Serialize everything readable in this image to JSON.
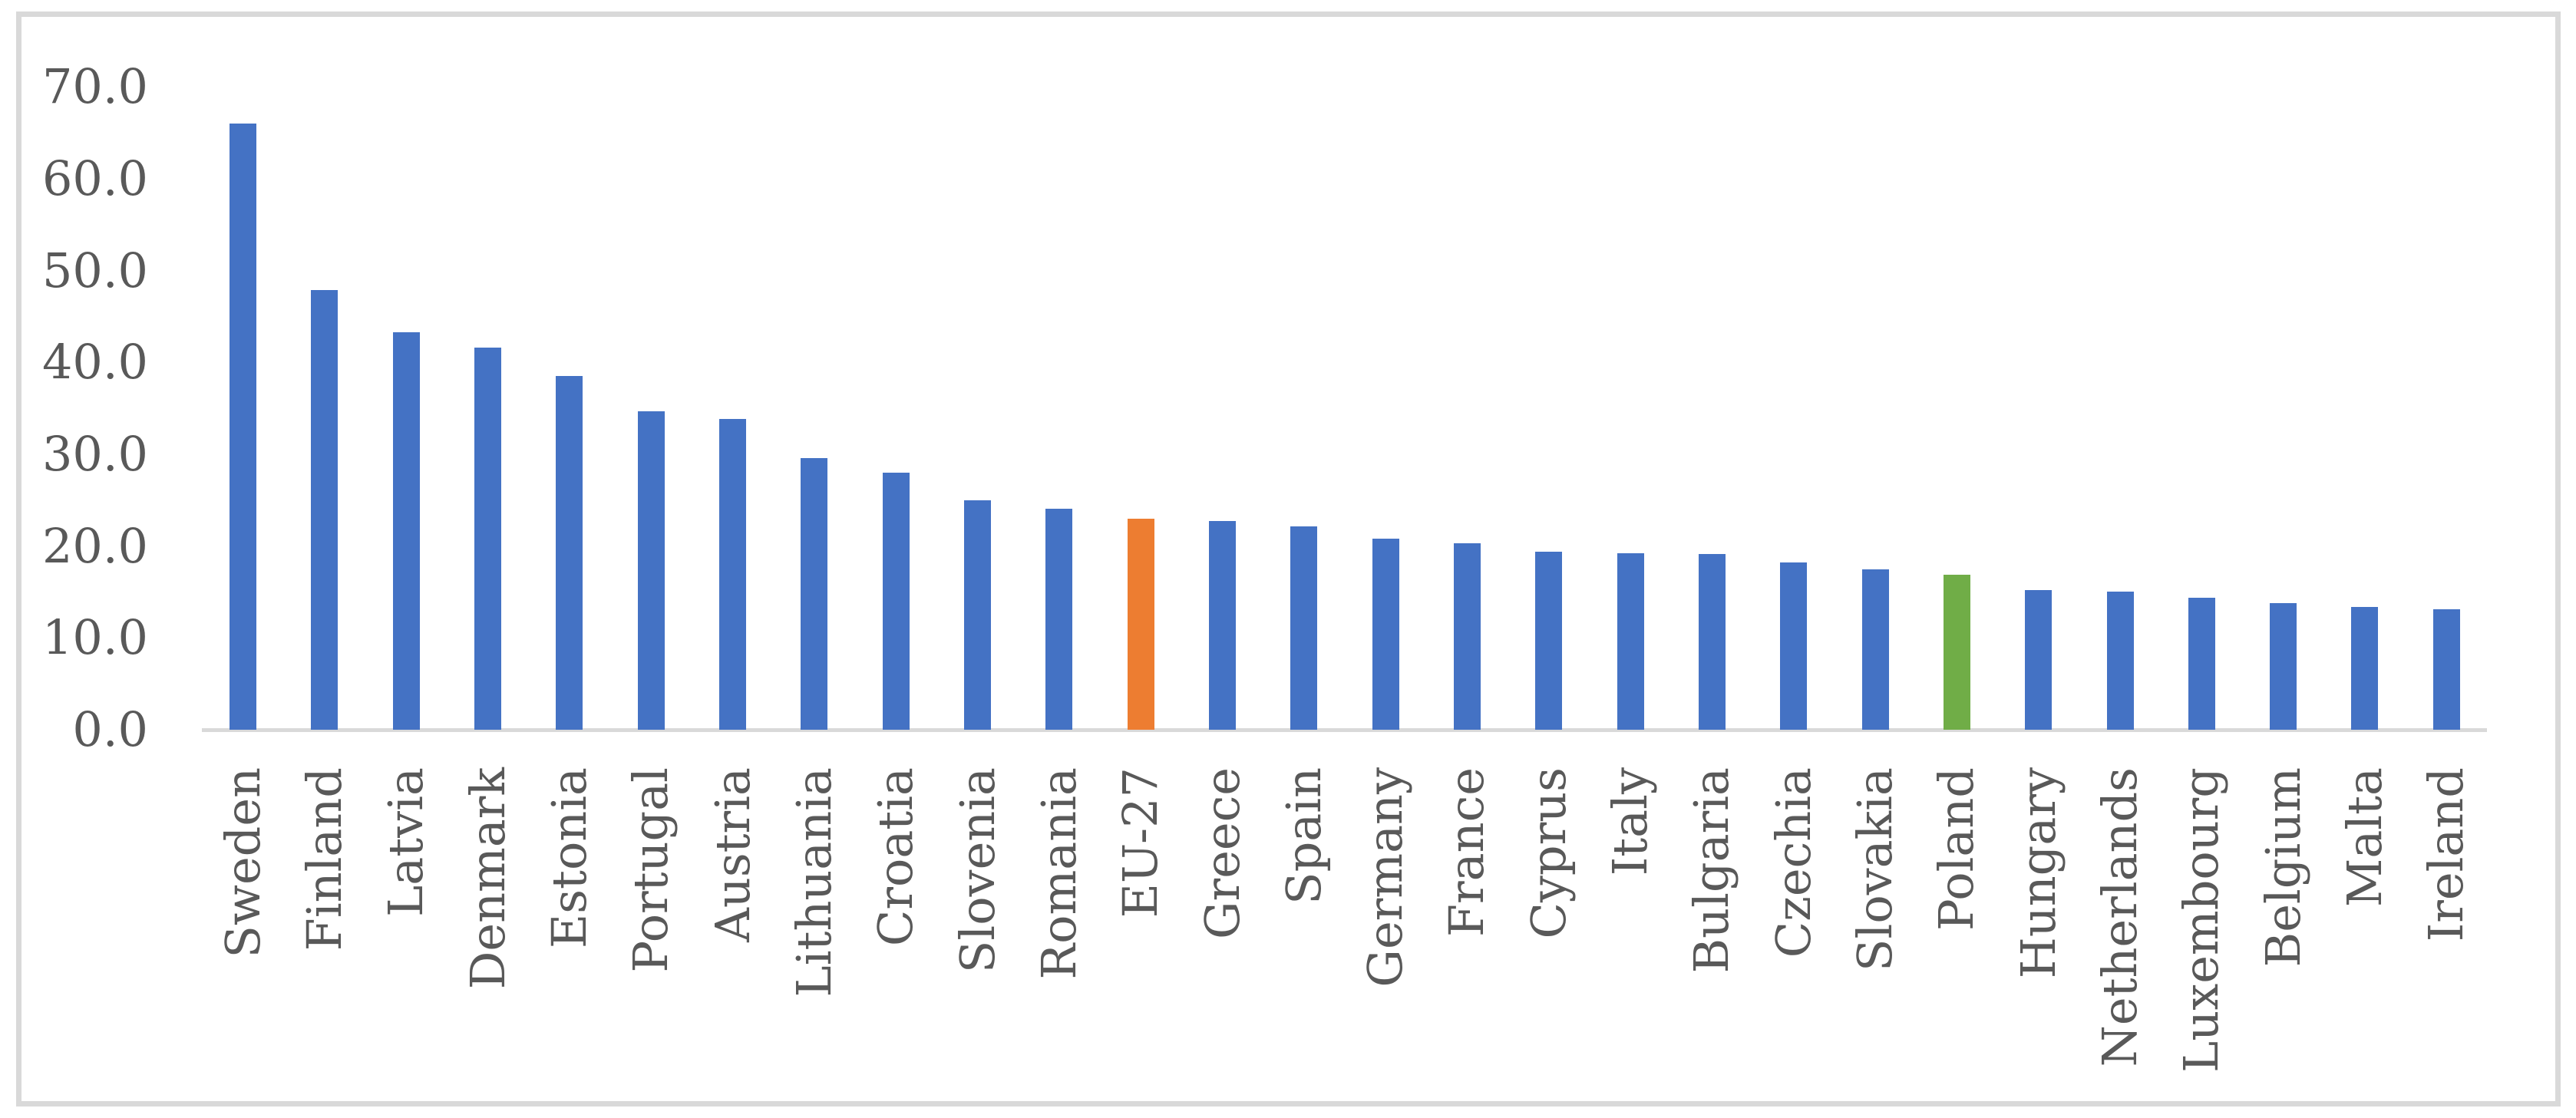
{
  "chart_data": {
    "type": "bar",
    "title": "",
    "xlabel": "",
    "ylabel": "",
    "categories": [
      "Sweden",
      "Finland",
      "Latvia",
      "Denmark",
      "Estonia",
      "Portugal",
      "Austria",
      "Lithuania",
      "Croatia",
      "Slovenia",
      "Romania",
      "EU-27",
      "Greece",
      "Spain",
      "Germany",
      "France",
      "Cyprus",
      "Italy",
      "Bulgaria",
      "Czechia",
      "Slovakia",
      "Poland",
      "Hungary",
      "Netherlands",
      "Luxembourg",
      "Belgium",
      "Malta",
      "Ireland"
    ],
    "values": [
      66.0,
      47.9,
      43.3,
      41.6,
      38.5,
      34.7,
      33.8,
      29.6,
      28.0,
      25.0,
      24.1,
      23.0,
      22.7,
      22.1,
      20.8,
      20.3,
      19.4,
      19.2,
      19.1,
      18.2,
      17.5,
      16.9,
      15.2,
      15.0,
      14.4,
      13.8,
      13.4,
      13.1
    ],
    "ylim": [
      0,
      70
    ],
    "ytick_step": 10,
    "ytick_labels": [
      "0.0",
      "10.0",
      "20.0",
      "30.0",
      "40.0",
      "50.0",
      "60.0",
      "70.0"
    ],
    "grid": "off",
    "legend": "none",
    "x_label_rotation_deg": -90,
    "colors": {
      "bar_default": "#4472C4",
      "axis_text": "#595959",
      "axis_line": "#D9D9D9",
      "frame_border": "#D9D9D9",
      "background": "#FFFFFF"
    },
    "highlighted_bars": [
      {
        "category": "EU-27",
        "color": "#ED7D31"
      },
      {
        "category": "Poland",
        "color": "#70AD47"
      }
    ]
  }
}
